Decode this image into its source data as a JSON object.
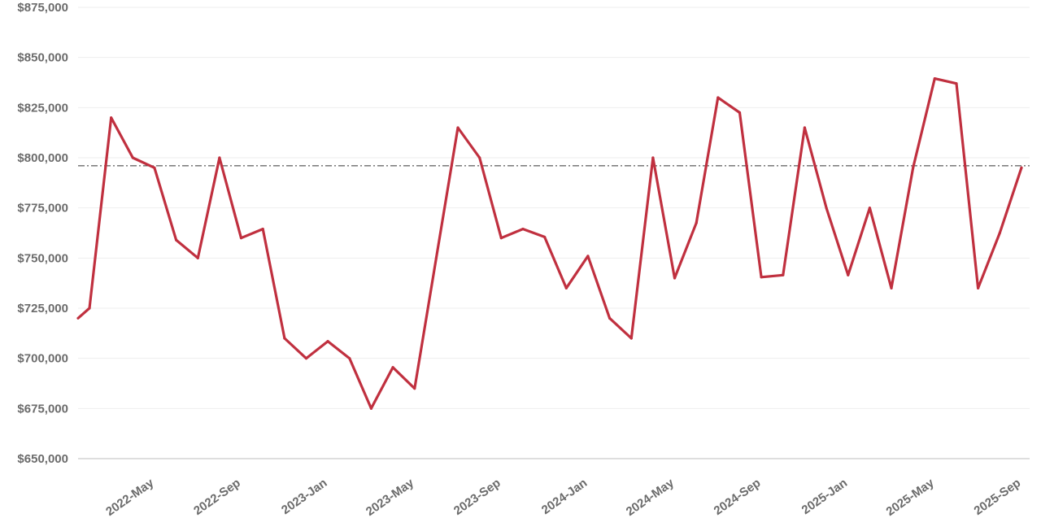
{
  "chart_data": {
    "type": "line",
    "title": "",
    "xlabel": "",
    "ylabel": "",
    "ylim": [
      650000,
      875000
    ],
    "y_ticks": [
      650000,
      675000,
      700000,
      725000,
      750000,
      775000,
      800000,
      825000,
      850000,
      875000
    ],
    "y_tick_labels": [
      "$650,000",
      "$675,000",
      "$700,000",
      "$725,000",
      "$750,000",
      "$775,000",
      "$800,000",
      "$825,000",
      "$850,000",
      "$875,000"
    ],
    "x_tick_labels": [
      {
        "month_index": 3,
        "label": "2022-May"
      },
      {
        "month_index": 7,
        "label": "2022-Sep"
      },
      {
        "month_index": 11,
        "label": "2023-Jan"
      },
      {
        "month_index": 15,
        "label": "2023-May"
      },
      {
        "month_index": 19,
        "label": "2023-Sep"
      },
      {
        "month_index": 23,
        "label": "2024-Jan"
      },
      {
        "month_index": 27,
        "label": "2024-May"
      },
      {
        "month_index": 31,
        "label": "2024-Sep"
      },
      {
        "month_index": 35,
        "label": "2025-Jan"
      },
      {
        "month_index": 39,
        "label": "2025-May"
      },
      {
        "month_index": 43,
        "label": "2025-Sep"
      }
    ],
    "x": [
      "2022-Feb",
      "2022-Mar",
      "2022-Apr",
      "2022-May",
      "2022-Jun",
      "2022-Jul",
      "2022-Aug",
      "2022-Sep",
      "2022-Oct",
      "2022-Nov",
      "2022-Dec",
      "2023-Jan",
      "2023-Feb",
      "2023-Mar",
      "2023-Apr",
      "2023-May",
      "2023-Jun",
      "2023-Jul",
      "2023-Aug",
      "2023-Sep",
      "2023-Oct",
      "2023-Nov",
      "2023-Dec",
      "2024-Jan",
      "2024-Feb",
      "2024-Mar",
      "2024-Apr",
      "2024-May",
      "2024-Jun",
      "2024-Jul",
      "2024-Aug",
      "2024-Sep",
      "2024-Oct",
      "2024-Nov",
      "2024-Dec",
      "2025-Jan",
      "2025-Feb",
      "2025-Mar",
      "2025-Apr",
      "2025-May",
      "2025-Jun",
      "2025-Jul",
      "2025-Aug",
      "2025-Sep"
    ],
    "series": [
      {
        "color": "#c0303f",
        "values": [
          725000,
          820000,
          800000,
          795000,
          759000,
          750000,
          800000,
          760000,
          764500,
          710000,
          700000,
          708500,
          700000,
          675000,
          695500,
          685000,
          750000,
          815000,
          800000,
          760000,
          764500,
          760500,
          735000,
          751000,
          720000,
          710000,
          800000,
          740000,
          767500,
          830000,
          822500,
          740500,
          741500,
          815000,
          775000,
          741500,
          775000,
          735000,
          795000,
          839500,
          837000,
          735000,
          762500,
          795000
        ]
      }
    ],
    "leading_value": 720000,
    "reference_line": {
      "value": 796000,
      "style": "dash-dot",
      "color": "#333333"
    },
    "grid": true,
    "legend": "none"
  }
}
